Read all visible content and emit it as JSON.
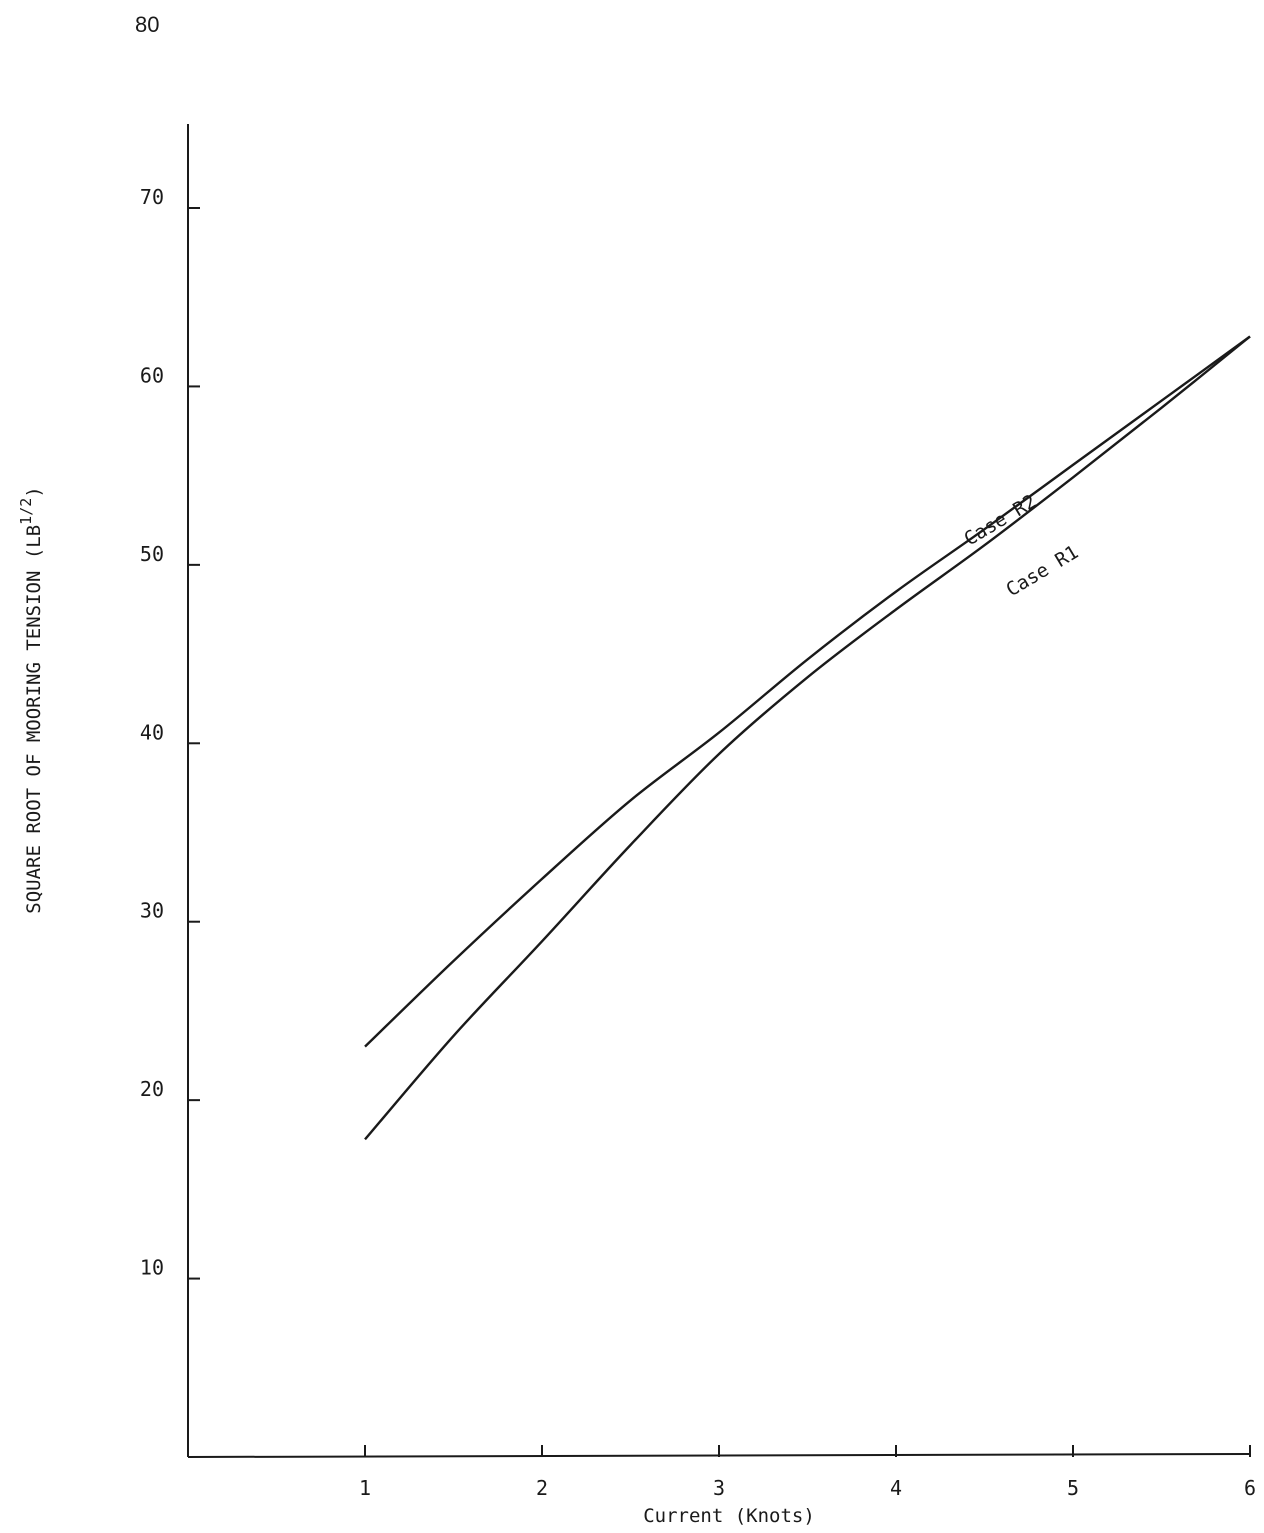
{
  "page_number": "80",
  "chart_data": {
    "type": "line",
    "title": "",
    "xlabel": "Current (Knots)",
    "ylabel_main": "SQUARE ROOT OF MOORING TENSION (LB",
    "ylabel_sup": "1/2",
    "ylabel_end": ")",
    "xlim": [
      0,
      6
    ],
    "ylim": [
      0,
      75
    ],
    "x_ticks": [
      1,
      2,
      3,
      4,
      5,
      6
    ],
    "x_tick_labels": [
      "1",
      "2",
      "3",
      "4",
      "5",
      "6"
    ],
    "y_ticks": [
      10,
      20,
      30,
      40,
      50,
      60,
      70
    ],
    "y_tick_labels": [
      "10",
      "20",
      "30",
      "40",
      "50",
      "60",
      "70"
    ],
    "grid": false,
    "legend": "none",
    "line_color": "#1a1a1a",
    "series": [
      {
        "name": "Case R2",
        "x": [
          1.0,
          1.5,
          2.0,
          2.5,
          3.0,
          3.5,
          4.0,
          4.5,
          5.0,
          5.5,
          6.0
        ],
        "y": [
          23.0,
          27.8,
          32.4,
          36.8,
          40.6,
          44.7,
          48.5,
          52.0,
          55.6,
          59.2,
          62.8
        ]
      },
      {
        "name": "Case R1",
        "x": [
          1.0,
          1.5,
          2.0,
          2.5,
          3.0,
          3.5,
          4.0,
          4.5,
          5.0,
          5.5,
          6.0
        ],
        "y": [
          17.8,
          23.6,
          28.9,
          34.3,
          39.4,
          43.7,
          47.5,
          51.1,
          54.9,
          58.8,
          62.8
        ]
      }
    ]
  }
}
